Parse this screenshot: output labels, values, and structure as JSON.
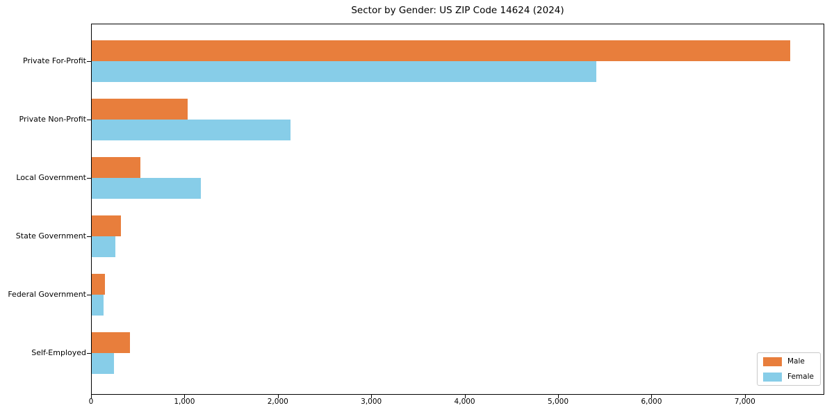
{
  "chart_data": {
    "type": "bar",
    "orientation": "horizontal",
    "title": "Sector by Gender: US ZIP Code 14624 (2024)",
    "categories": [
      "Private For-Profit",
      "Private Non-Profit",
      "Local Government",
      "State Government",
      "Federal Government",
      "Self-Employed"
    ],
    "series": [
      {
        "name": "Male",
        "color": "#e87e3c",
        "values": [
          7475,
          1030,
          520,
          315,
          145,
          410
        ]
      },
      {
        "name": "Female",
        "color": "#87cde8",
        "values": [
          5400,
          2125,
          1165,
          250,
          130,
          240
        ]
      }
    ],
    "xlabel": "",
    "ylabel": "",
    "xlim": [
      0,
      7850
    ],
    "x_ticks": [
      0,
      1000,
      2000,
      3000,
      4000,
      5000,
      6000,
      7000
    ],
    "x_tick_labels": [
      "0",
      "1,000",
      "2,000",
      "3,000",
      "4,000",
      "5,000",
      "6,000",
      "7,000"
    ],
    "grid": false,
    "legend_position": "lower right"
  }
}
